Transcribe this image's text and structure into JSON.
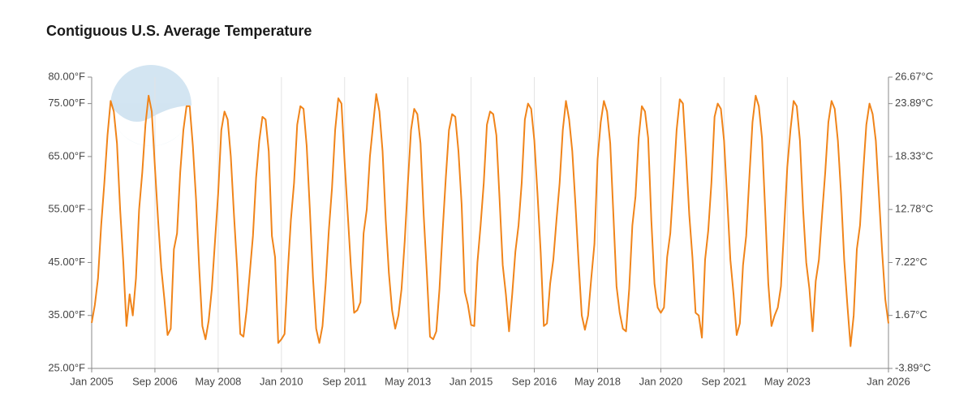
{
  "chart_data": {
    "type": "line",
    "title": "Contiguous U.S. Average Temperature",
    "x": [
      "2005-01",
      "2005-02",
      "2005-03",
      "2005-04",
      "2005-05",
      "2005-06",
      "2005-07",
      "2005-08",
      "2005-09",
      "2005-10",
      "2005-11",
      "2005-12",
      "2006-01",
      "2006-02",
      "2006-03",
      "2006-04",
      "2006-05",
      "2006-06",
      "2006-07",
      "2006-08",
      "2006-09",
      "2006-10",
      "2006-11",
      "2006-12",
      "2007-01",
      "2007-02",
      "2007-03",
      "2007-04",
      "2007-05",
      "2007-06",
      "2007-07",
      "2007-08",
      "2007-09",
      "2007-10",
      "2007-11",
      "2007-12",
      "2008-01",
      "2008-02",
      "2008-03",
      "2008-04",
      "2008-05",
      "2008-06",
      "2008-07",
      "2008-08",
      "2008-09",
      "2008-10",
      "2008-11",
      "2008-12",
      "2009-01",
      "2009-02",
      "2009-03",
      "2009-04",
      "2009-05",
      "2009-06",
      "2009-07",
      "2009-08",
      "2009-09",
      "2009-10",
      "2009-11",
      "2009-12",
      "2010-01",
      "2010-02",
      "2010-03",
      "2010-04",
      "2010-05",
      "2010-06",
      "2010-07",
      "2010-08",
      "2010-09",
      "2010-10",
      "2010-11",
      "2010-12",
      "2011-01",
      "2011-02",
      "2011-03",
      "2011-04",
      "2011-05",
      "2011-06",
      "2011-07",
      "2011-08",
      "2011-09",
      "2011-10",
      "2011-11",
      "2011-12",
      "2012-01",
      "2012-02",
      "2012-03",
      "2012-04",
      "2012-05",
      "2012-06",
      "2012-07",
      "2012-08",
      "2012-09",
      "2012-10",
      "2012-11",
      "2012-12",
      "2013-01",
      "2013-02",
      "2013-03",
      "2013-04",
      "2013-05",
      "2013-06",
      "2013-07",
      "2013-08",
      "2013-09",
      "2013-10",
      "2013-11",
      "2013-12",
      "2014-01",
      "2014-02",
      "2014-03",
      "2014-04",
      "2014-05",
      "2014-06",
      "2014-07",
      "2014-08",
      "2014-09",
      "2014-10",
      "2014-11",
      "2014-12",
      "2015-01",
      "2015-02",
      "2015-03",
      "2015-04",
      "2015-05",
      "2015-06",
      "2015-07",
      "2015-08",
      "2015-09",
      "2015-10",
      "2015-11",
      "2015-12",
      "2016-01",
      "2016-02",
      "2016-03",
      "2016-04",
      "2016-05",
      "2016-06",
      "2016-07",
      "2016-08",
      "2016-09",
      "2016-10",
      "2016-11",
      "2016-12",
      "2017-01",
      "2017-02",
      "2017-03",
      "2017-04",
      "2017-05",
      "2017-06",
      "2017-07",
      "2017-08",
      "2017-09",
      "2017-10",
      "2017-11",
      "2017-12",
      "2018-01",
      "2018-02",
      "2018-03",
      "2018-04",
      "2018-05",
      "2018-06",
      "2018-07",
      "2018-08",
      "2018-09",
      "2018-10",
      "2018-11",
      "2018-12",
      "2019-01",
      "2019-02",
      "2019-03",
      "2019-04",
      "2019-05",
      "2019-06",
      "2019-07",
      "2019-08",
      "2019-09",
      "2019-10",
      "2019-11",
      "2019-12",
      "2020-01",
      "2020-02",
      "2020-03",
      "2020-04",
      "2020-05",
      "2020-06",
      "2020-07",
      "2020-08",
      "2020-09",
      "2020-10",
      "2020-11",
      "2020-12",
      "2021-01",
      "2021-02",
      "2021-03",
      "2021-04",
      "2021-05",
      "2021-06",
      "2021-07",
      "2021-08",
      "2021-09",
      "2021-10",
      "2021-11",
      "2021-12",
      "2022-01",
      "2022-02",
      "2022-03",
      "2022-04",
      "2022-05",
      "2022-06",
      "2022-07",
      "2022-08",
      "2022-09",
      "2022-10",
      "2022-11",
      "2022-12",
      "2023-01",
      "2023-02",
      "2023-03",
      "2023-04",
      "2023-05",
      "2023-06",
      "2023-07",
      "2023-08",
      "2023-09",
      "2023-10",
      "2023-11",
      "2023-12",
      "2024-01",
      "2024-02",
      "2024-03",
      "2024-04",
      "2024-05",
      "2024-06",
      "2024-07",
      "2024-08",
      "2024-09",
      "2024-10",
      "2024-11",
      "2024-12",
      "2025-01",
      "2025-02",
      "2025-03",
      "2025-04",
      "2025-05",
      "2025-06",
      "2025-07",
      "2025-08",
      "2025-09",
      "2025-10",
      "2025-11",
      "2025-12",
      "2026-01"
    ],
    "values": [
      33.6,
      37,
      42,
      52,
      60,
      69,
      75.5,
      73.5,
      67.5,
      55,
      45,
      33,
      39,
      35,
      42,
      55,
      62,
      71,
      76.5,
      73.5,
      63,
      53,
      44,
      38,
      31.3,
      32.5,
      47.5,
      50.5,
      62,
      70,
      74.5,
      74.5,
      67,
      57,
      44,
      33,
      30.5,
      34,
      40,
      49,
      58,
      70,
      73.5,
      72,
      65,
      54,
      44,
      31.5,
      31,
      36,
      43,
      50,
      61,
      68,
      72.5,
      72,
      66,
      50,
      46,
      29.8,
      30.5,
      31.5,
      43,
      53,
      60,
      71,
      74.5,
      74,
      67,
      55,
      42,
      32.5,
      29.8,
      33,
      41,
      51,
      59,
      70,
      76,
      75,
      64,
      54,
      44,
      35.5,
      36,
      37.5,
      50.5,
      55,
      65,
      71,
      76.8,
      73.5,
      66,
      53,
      43,
      36,
      32.5,
      35,
      40,
      49,
      60,
      70,
      74,
      73,
      67.5,
      54,
      43,
      31,
      30.5,
      32,
      40,
      51,
      61,
      70,
      73,
      72.5,
      66,
      56,
      39.5,
      37,
      33.2,
      33,
      45,
      52,
      60,
      71,
      73.5,
      73,
      69,
      57,
      44.5,
      39,
      32,
      39,
      47,
      52,
      60,
      72,
      75,
      74,
      68,
      58,
      47,
      33,
      33.5,
      41,
      45.5,
      53,
      60,
      70,
      75.5,
      72,
      66,
      56,
      45,
      35,
      32.3,
      35,
      42,
      48.5,
      64.5,
      71.5,
      75.5,
      73.5,
      67.5,
      54,
      40.5,
      35.5,
      32.5,
      32,
      40,
      52,
      57.5,
      68.5,
      74.5,
      73.5,
      68.5,
      53,
      41,
      36.5,
      35.5,
      36.5,
      46,
      50.5,
      60,
      70,
      75.8,
      75,
      65,
      54,
      46,
      35.5,
      35,
      30.8,
      45.5,
      51,
      60,
      72.5,
      75,
      74,
      68,
      57,
      45.5,
      39,
      31.3,
      33.5,
      44.5,
      50,
      61,
      71.5,
      76.5,
      74.5,
      68.5,
      55,
      41,
      33,
      35,
      36.5,
      40.5,
      51.5,
      63,
      70,
      75.5,
      74.5,
      68,
      55,
      45,
      40,
      32,
      41.5,
      45.5,
      54,
      62,
      71.5,
      75.5,
      74,
      68,
      58,
      45.5,
      37,
      29.2,
      35,
      47.5,
      52,
      62,
      71,
      75,
      73,
      68,
      57.5,
      47,
      38,
      33.5
    ],
    "color": "#f0841a",
    "xlim": [
      "2005-01",
      "2026-01"
    ],
    "xticks": [
      {
        "value": "2005-01",
        "label": "Jan 2005"
      },
      {
        "value": "2006-09",
        "label": "Sep 2006"
      },
      {
        "value": "2008-05",
        "label": "May 2008"
      },
      {
        "value": "2010-01",
        "label": "Jan 2010"
      },
      {
        "value": "2011-09",
        "label": "Sep 2011"
      },
      {
        "value": "2013-05",
        "label": "May 2013"
      },
      {
        "value": "2015-01",
        "label": "Jan 2015"
      },
      {
        "value": "2016-09",
        "label": "Sep 2016"
      },
      {
        "value": "2018-05",
        "label": "May 2018"
      },
      {
        "value": "2020-01",
        "label": "Jan 2020"
      },
      {
        "value": "2021-09",
        "label": "Sep 2021"
      },
      {
        "value": "2023-05",
        "label": "May 2023"
      },
      {
        "value": "2026-01",
        "label": "Jan 2026"
      }
    ],
    "ylim": [
      25,
      80
    ],
    "yticks": [
      {
        "value": 25,
        "label": "25.00°F"
      },
      {
        "value": 35,
        "label": "35.00°F"
      },
      {
        "value": 45,
        "label": "45.00°F"
      },
      {
        "value": 55,
        "label": "55.00°F"
      },
      {
        "value": 65,
        "label": "65.00°F"
      },
      {
        "value": 75,
        "label": "75.00°F"
      },
      {
        "value": 80,
        "label": "80.00°F"
      }
    ],
    "y2lim": [
      -3.89,
      26.67
    ],
    "y2ticks": [
      {
        "value": -3.89,
        "label": "-3.89°C"
      },
      {
        "value": 1.67,
        "label": "1.67°C"
      },
      {
        "value": 7.22,
        "label": "7.22°C"
      },
      {
        "value": 12.78,
        "label": "12.78°C"
      },
      {
        "value": 18.33,
        "label": "18.33°C"
      },
      {
        "value": 23.89,
        "label": "23.89°C"
      },
      {
        "value": 26.67,
        "label": "26.67°C"
      }
    ],
    "grid": "x"
  }
}
